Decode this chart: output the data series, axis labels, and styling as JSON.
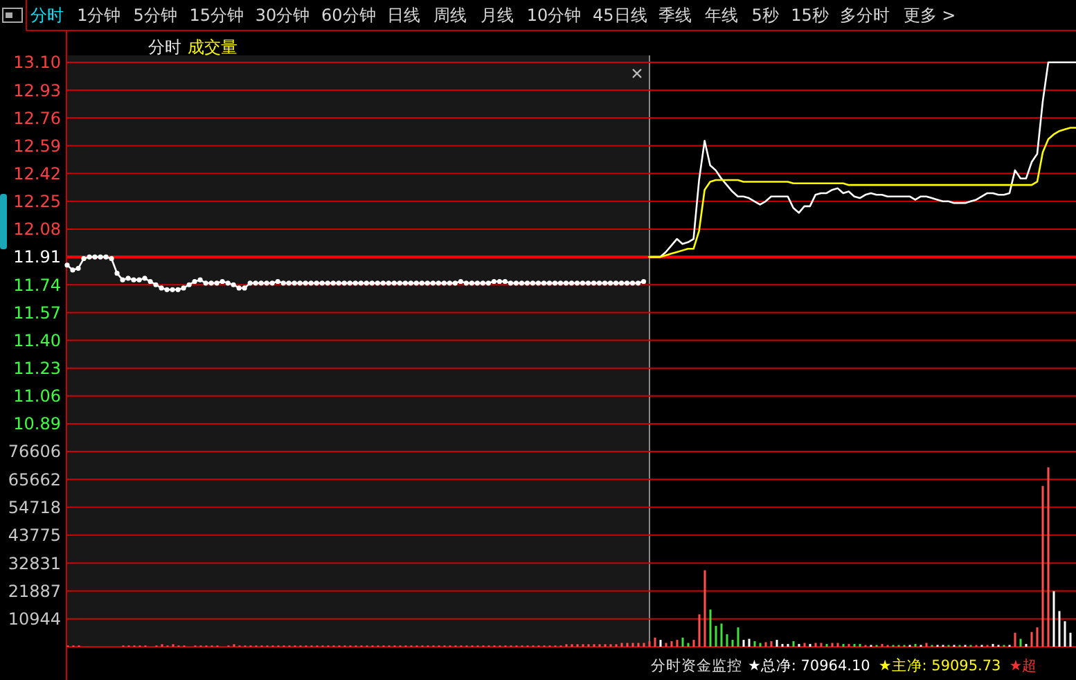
{
  "chart_data": [
    {
      "type": "other",
      "annotations": [
        "分时",
        "1分钟",
        "5分钟",
        "15分钟",
        "30分钟",
        "60分钟",
        "日线",
        "周线",
        "月线",
        "10分钟",
        "45日线",
        "季线",
        "年线",
        "5秒",
        "15秒",
        "多分时",
        "更多 >"
      ]
    },
    {
      "type": "line",
      "title": "分时",
      "subtitle": "成交量",
      "categories": [
        null,
        null,
        null,
        null,
        null,
        null,
        null,
        null,
        null,
        null,
        null,
        null,
        null,
        null,
        null,
        null,
        null,
        null,
        null,
        null,
        null,
        null,
        null,
        null,
        null,
        null,
        null,
        null,
        null,
        null,
        null,
        null,
        null,
        null,
        null,
        null,
        null,
        null,
        null,
        null,
        null,
        null,
        null,
        null,
        null,
        null,
        null,
        null,
        null,
        null,
        null,
        null,
        null,
        null,
        null,
        null,
        null,
        null,
        null,
        null,
        null,
        null,
        null,
        null,
        null,
        null,
        null,
        null,
        null,
        null,
        null,
        null,
        null,
        null,
        null,
        null,
        null,
        null,
        null,
        null,
        null,
        null,
        null,
        null,
        null,
        null,
        null,
        null,
        null,
        null,
        null,
        null,
        null,
        null,
        null,
        null,
        null,
        null,
        null,
        null,
        null,
        null,
        null,
        null,
        null,
        null,
        null,
        null,
        null,
        null,
        null,
        null,
        null,
        null,
        null,
        null,
        null,
        null,
        null,
        null,
        null,
        null,
        null,
        null,
        null,
        null,
        null,
        null,
        null,
        null,
        null,
        null,
        null,
        null,
        null,
        null,
        null,
        null,
        null,
        null,
        null,
        null,
        null,
        null,
        null,
        null,
        null,
        null,
        null,
        null,
        null,
        null,
        null,
        null,
        null,
        null,
        null,
        null,
        null,
        null,
        null,
        null,
        null,
        null,
        null,
        null,
        null,
        null,
        null,
        null,
        null,
        null,
        null,
        null,
        null,
        null,
        null,
        null,
        null,
        null,
        null,
        null,
        null
      ],
      "series": [
        {
          "color": "#ffffff",
          "marker": "circle",
          "values": [
            11.86,
            11.83,
            11.84,
            11.9,
            11.91,
            11.91,
            11.91,
            11.91,
            11.9,
            11.81,
            11.77,
            11.78,
            11.77,
            11.77,
            11.78,
            11.76,
            11.74,
            11.72,
            11.71,
            11.71,
            11.71,
            11.72,
            11.74,
            11.76,
            11.77,
            11.75,
            11.75,
            11.75,
            11.76,
            11.75,
            11.74,
            11.72,
            11.72,
            11.75,
            11.75,
            11.75,
            11.75,
            11.75,
            11.76,
            11.75,
            11.75,
            11.75,
            11.75,
            11.75,
            11.75,
            11.75,
            11.75,
            11.75,
            11.75,
            11.75,
            11.75,
            11.75,
            11.75,
            11.75,
            11.75,
            11.75,
            11.75,
            11.75,
            11.75,
            11.75,
            11.75,
            11.75,
            11.75,
            11.75,
            11.75,
            11.75,
            11.75,
            11.75,
            11.75,
            11.75,
            11.75,
            11.76,
            11.75,
            11.75,
            11.75,
            11.75,
            11.75,
            11.76,
            11.76,
            11.76,
            11.75,
            11.75,
            11.75,
            11.75,
            11.75,
            11.75,
            11.75,
            11.75,
            11.75,
            11.75,
            11.75,
            11.75,
            11.75,
            11.75,
            11.75,
            11.75,
            11.75,
            11.75,
            11.75,
            11.75,
            11.75,
            11.75,
            11.75,
            11.75,
            11.76,
            null,
            null,
            null,
            null,
            null,
            null,
            null,
            null,
            null,
            null,
            null,
            null,
            null,
            null,
            null,
            null,
            null,
            null,
            null,
            null,
            null,
            null,
            null,
            null,
            null,
            null,
            null,
            null,
            null,
            null,
            null,
            null,
            null,
            null,
            null,
            null,
            null,
            null,
            null,
            null,
            null,
            null,
            null,
            null,
            null,
            null,
            null,
            null,
            null,
            null,
            null,
            null,
            null,
            null,
            null,
            null,
            null,
            null,
            null,
            null,
            null,
            null,
            null,
            null,
            null,
            null,
            null,
            null,
            null,
            null,
            null,
            null,
            null,
            null,
            null,
            null,
            null,
            null
          ]
        },
        {
          "color": "#ffffff",
          "values": [
            null,
            null,
            null,
            null,
            null,
            null,
            null,
            null,
            null,
            null,
            null,
            null,
            null,
            null,
            null,
            null,
            null,
            null,
            null,
            null,
            null,
            null,
            null,
            null,
            null,
            null,
            null,
            null,
            null,
            null,
            null,
            null,
            null,
            null,
            null,
            null,
            null,
            null,
            null,
            null,
            null,
            null,
            null,
            null,
            null,
            null,
            null,
            null,
            null,
            null,
            null,
            null,
            null,
            null,
            null,
            null,
            null,
            null,
            null,
            null,
            null,
            null,
            null,
            null,
            null,
            null,
            null,
            null,
            null,
            null,
            null,
            null,
            null,
            null,
            null,
            null,
            null,
            null,
            null,
            null,
            null,
            null,
            null,
            null,
            null,
            null,
            null,
            null,
            null,
            null,
            null,
            null,
            null,
            null,
            null,
            null,
            null,
            null,
            null,
            null,
            null,
            null,
            null,
            null,
            null,
            11.91,
            11.91,
            11.91,
            11.94,
            11.98,
            12.02,
            11.99,
            12.0,
            12.02,
            12.38,
            12.62,
            12.47,
            12.44,
            12.39,
            12.35,
            12.31,
            12.28,
            12.28,
            12.27,
            12.25,
            12.23,
            12.25,
            12.28,
            12.28,
            12.28,
            12.28,
            12.21,
            12.18,
            12.22,
            12.22,
            12.29,
            12.3,
            12.3,
            12.32,
            12.33,
            12.3,
            12.31,
            12.28,
            12.27,
            12.29,
            12.3,
            12.29,
            12.29,
            12.28,
            12.28,
            12.28,
            12.28,
            12.28,
            12.26,
            12.28,
            12.28,
            12.27,
            12.26,
            12.25,
            12.25,
            12.24,
            12.24,
            12.24,
            12.25,
            12.26,
            12.28,
            12.3,
            12.3,
            12.29,
            12.29,
            12.3,
            12.44,
            12.39,
            12.39,
            12.49,
            12.54,
            12.86,
            13.1,
            13.1,
            13.1,
            13.1,
            13.1,
            13.1
          ]
        },
        {
          "color": "#ffff00",
          "values": [
            null,
            null,
            null,
            null,
            null,
            null,
            null,
            null,
            null,
            null,
            null,
            null,
            null,
            null,
            null,
            null,
            null,
            null,
            null,
            null,
            null,
            null,
            null,
            null,
            null,
            null,
            null,
            null,
            null,
            null,
            null,
            null,
            null,
            null,
            null,
            null,
            null,
            null,
            null,
            null,
            null,
            null,
            null,
            null,
            null,
            null,
            null,
            null,
            null,
            null,
            null,
            null,
            null,
            null,
            null,
            null,
            null,
            null,
            null,
            null,
            null,
            null,
            null,
            null,
            null,
            null,
            null,
            null,
            null,
            null,
            null,
            null,
            null,
            null,
            null,
            null,
            null,
            null,
            null,
            null,
            null,
            null,
            null,
            null,
            null,
            null,
            null,
            null,
            null,
            null,
            null,
            null,
            null,
            null,
            null,
            null,
            null,
            null,
            null,
            null,
            null,
            null,
            null,
            null,
            null,
            11.91,
            11.91,
            11.91,
            11.92,
            11.93,
            11.94,
            11.95,
            11.96,
            11.96,
            12.07,
            12.32,
            12.37,
            12.38,
            12.38,
            12.38,
            12.38,
            12.38,
            12.37,
            12.37,
            12.37,
            12.37,
            12.37,
            12.37,
            12.37,
            12.37,
            12.37,
            12.36,
            12.36,
            12.36,
            12.36,
            12.36,
            12.36,
            12.36,
            12.36,
            12.36,
            12.36,
            12.35,
            12.35,
            12.35,
            12.35,
            12.35,
            12.35,
            12.35,
            12.35,
            12.35,
            12.35,
            12.35,
            12.35,
            12.35,
            12.35,
            12.35,
            12.35,
            12.35,
            12.35,
            12.35,
            12.35,
            12.35,
            12.35,
            12.35,
            12.35,
            12.35,
            12.35,
            12.35,
            12.35,
            12.35,
            12.35,
            12.35,
            12.35,
            12.35,
            12.35,
            12.37,
            12.55,
            12.63,
            12.66,
            12.68,
            12.69,
            12.7,
            12.7
          ]
        }
      ],
      "ylim": [
        10.89,
        13.1
      ],
      "yticks": [
        {
          "value": 13.1,
          "label": "13.10"
        },
        12.93,
        12.76,
        12.59,
        12.42,
        12.25,
        12.08,
        11.91,
        11.74,
        11.57,
        {
          "value": 11.4,
          "label": "11.40"
        },
        11.23,
        11.06,
        10.89
      ],
      "grid": "y",
      "ref_lines": [
        {
          "axis": "y",
          "value": 11.91,
          "color": "#ff0000"
        }
      ]
    },
    {
      "type": "bar",
      "categories": [
        null,
        null,
        null,
        null,
        null,
        null,
        null,
        null,
        null,
        null,
        null,
        null,
        null,
        null,
        null,
        null,
        null,
        null,
        null,
        null,
        null,
        null,
        null,
        null,
        null,
        null,
        null,
        null,
        null,
        null,
        null,
        null,
        null,
        null,
        null,
        null,
        null,
        null,
        null,
        null,
        null,
        null,
        null,
        null,
        null,
        null,
        null,
        null,
        null,
        null,
        null,
        null,
        null,
        null,
        null,
        null,
        null,
        null,
        null,
        null,
        null,
        null,
        null,
        null,
        null,
        null,
        null,
        null,
        null,
        null,
        null,
        null,
        null,
        null,
        null,
        null,
        null,
        null,
        null,
        null,
        null,
        null,
        null,
        null,
        null,
        null,
        null,
        null,
        null,
        null,
        null,
        null,
        null,
        null,
        null,
        null,
        null,
        null,
        null,
        null,
        null,
        null,
        null,
        null,
        null,
        null,
        null,
        null,
        null,
        null,
        null,
        null,
        null,
        null,
        null,
        null,
        null,
        null,
        null,
        null,
        null,
        null,
        null,
        null,
        null,
        null,
        null,
        null,
        null,
        null,
        null,
        null,
        null,
        null,
        null,
        null,
        null,
        null,
        null,
        null,
        null,
        null,
        null,
        null,
        null,
        null,
        null,
        null,
        null,
        null,
        null,
        null,
        null,
        null,
        null,
        null,
        null,
        null,
        null,
        null,
        null,
        null,
        null,
        null,
        null,
        null,
        null,
        null,
        null,
        null,
        null,
        null,
        null,
        null,
        null,
        null,
        null,
        null,
        null,
        null,
        null,
        null,
        null
      ],
      "values": [
        500,
        500,
        500,
        null,
        null,
        null,
        null,
        null,
        null,
        null,
        500,
        500,
        500,
        500,
        500,
        null,
        500,
        1000,
        500,
        1000,
        500,
        500,
        null,
        500,
        500,
        500,
        500,
        500,
        null,
        500,
        1000,
        500,
        500,
        500,
        500,
        500,
        500,
        500,
        500,
        500,
        500,
        500,
        500,
        500,
        500,
        500,
        500,
        500,
        500,
        500,
        500,
        500,
        500,
        500,
        500,
        500,
        500,
        500,
        500,
        500,
        500,
        500,
        500,
        500,
        500,
        500,
        500,
        500,
        500,
        500,
        500,
        500,
        500,
        500,
        500,
        500,
        500,
        500,
        500,
        500,
        500,
        500,
        500,
        500,
        500,
        500,
        500,
        500,
        500,
        500,
        1000,
        1000,
        1000,
        1000,
        1000,
        1000,
        1000,
        1000,
        1000,
        1000,
        1500,
        1500,
        1500,
        1500,
        1500,
        2200,
        3600,
        2700,
        1500,
        2200,
        2700,
        3600,
        1500,
        2700,
        12700,
        30000,
        14600,
        8200,
        9100,
        4900,
        2700,
        7600,
        2700,
        3100,
        2200,
        1500,
        1800,
        2200,
        2700,
        1100,
        1100,
        2200,
        1100,
        1500,
        1100,
        1500,
        1500,
        1100,
        1500,
        1500,
        1100,
        1100,
        1100,
        1100,
        700,
        700,
        700,
        1100,
        700,
        700,
        700,
        700,
        700,
        1100,
        700,
        1500,
        700,
        700,
        700,
        700,
        700,
        700,
        700,
        700,
        700,
        700,
        700,
        1100,
        700,
        700,
        700,
        5500,
        3100,
        1100,
        5800,
        7600,
        63100,
        70400,
        21800,
        14000,
        10000,
        5500,
        null
      ],
      "colors": [
        "#ff5050",
        "#ff5050",
        "#ff5050",
        "#ff5050",
        "#ff5050",
        "#ff5050",
        "#ff5050",
        "#ff5050",
        "#ff5050",
        "#ff5050",
        "#ff5050",
        "#ff5050",
        "#ff5050",
        "#ff5050",
        "#ff5050",
        "#ff5050",
        "#ff5050",
        "#ff5050",
        "#ff5050",
        "#ff5050",
        "#ff5050",
        "#ff5050",
        "#ff5050",
        "#ff5050",
        "#ff5050",
        "#ff5050",
        "#ff5050",
        "#ff5050",
        "#ff5050",
        "#ff5050",
        "#ff5050",
        "#ff5050",
        "#ff5050",
        "#ff5050",
        "#ff5050",
        "#ff5050",
        "#ff5050",
        "#ff5050",
        "#ff5050",
        "#ff5050",
        "#ff5050",
        "#ff5050",
        "#ff5050",
        "#ff5050",
        "#ff5050",
        "#ff5050",
        "#ff5050",
        "#ff5050",
        "#ff5050",
        "#ff5050",
        "#ff5050",
        "#ff5050",
        "#ff5050",
        "#ff5050",
        "#ff5050",
        "#ff5050",
        "#ff5050",
        "#ff5050",
        "#ff5050",
        "#ff5050",
        "#ff5050",
        "#ff5050",
        "#ff5050",
        "#ff5050",
        "#ff5050",
        "#ff5050",
        "#ff5050",
        "#ff5050",
        "#ff5050",
        "#ff5050",
        "#ff5050",
        "#ff5050",
        "#ff5050",
        "#ff5050",
        "#ff5050",
        "#ff5050",
        "#ff5050",
        "#ff5050",
        "#ff5050",
        "#ff5050",
        "#ff5050",
        "#ff5050",
        "#ff5050",
        "#ff5050",
        "#ff5050",
        "#ff5050",
        "#ff5050",
        "#ff5050",
        "#ff5050",
        "#ff5050",
        "#ff5050",
        "#ff5050",
        "#ff5050",
        "#ff5050",
        "#ff5050",
        "#ff5050",
        "#ff5050",
        "#ff5050",
        "#ff5050",
        "#ff5050",
        "#ff5050",
        "#ff5050",
        "#ff5050",
        "#ff5050",
        "#ff5050",
        "#ff5050",
        "#ff5050",
        "#ffffff",
        "#ff5050",
        "#ff5050",
        "#ff5050",
        "#40e040",
        "#40e040",
        "#ff5050",
        "#ff5050",
        "#ff5050",
        "#40e040",
        "#40e040",
        "#40e040",
        "#40e040",
        "#40e040",
        "#40e040",
        "#ffffff",
        "#ffffff",
        "#40e040",
        "#40e040",
        "#ff5050",
        "#ff5050",
        "#ffffff",
        "#ffffff",
        "#ffffff",
        "#40e040",
        "#ffffff",
        "#ff5050",
        "#ffffff",
        "#ff5050",
        "#ff5050",
        "#40e040",
        "#ff5050",
        "#ff5050",
        "#40e040",
        "#ff5050",
        "#40e040",
        "#40e040",
        "#ff5050",
        "#ffffff",
        "#40e040",
        "#ff5050",
        "#ff5050",
        "#40e040",
        "#40e040",
        "#40e040",
        "#ffffff",
        "#40e040",
        "#ffffff",
        "#ff5050",
        "#40e040",
        "#ffffff",
        "#ffffff",
        "#40e040",
        "#ffffff",
        "#40e040",
        "#ffffff",
        "#40e040",
        "#ff5050",
        "#ffffff",
        "#ff5050",
        "#ffffff",
        "#ffffff",
        "#40e040",
        "#ffffff",
        "#ff5050",
        "#40e040",
        "#ffffff",
        "#ff5050",
        "#ff5050",
        "#ff5050",
        "#ff5050",
        "#ffffff",
        "#ffffff",
        "#ffffff",
        "#ffffff",
        "#ffffff"
      ],
      "ylim": [
        0,
        76606
      ],
      "yticks": [
        76606,
        65662,
        54718,
        43775,
        32831,
        21887,
        10944
      ],
      "grid": "y",
      "annotations": [
        "分时资金监控",
        "★总净: 70964.10",
        "★主净: 59095.73",
        "★超"
      ]
    }
  ]
}
